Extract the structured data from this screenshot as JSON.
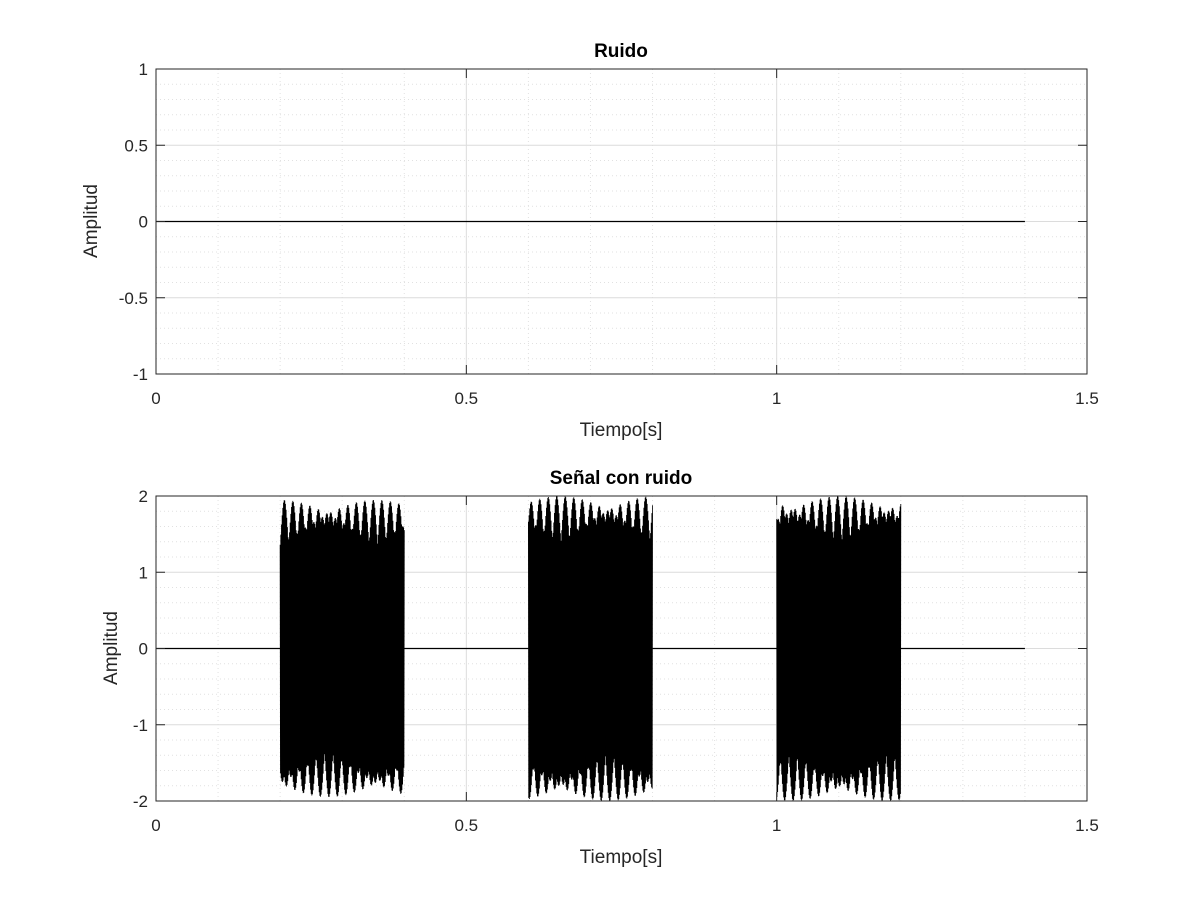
{
  "chart_data": [
    {
      "type": "line",
      "title": "Ruido",
      "xlabel": "Tiempo[s]",
      "ylabel": "Amplitud",
      "xlim": [
        0,
        1.5
      ],
      "ylim": [
        -1,
        1
      ],
      "xticks": [
        0,
        0.5,
        1,
        1.5
      ],
      "xtick_labels": [
        "0",
        "0.5",
        "1",
        "1.5"
      ],
      "yticks": [
        -1,
        -0.5,
        0,
        0.5,
        1
      ],
      "ytick_labels": [
        "-1",
        "-0.5",
        "0",
        "0.5",
        "1"
      ],
      "grid": true,
      "minor_grid": true,
      "line_color": "#000000",
      "series": [
        {
          "x": [
            0,
            1.4
          ],
          "y": [
            0,
            0
          ]
        }
      ]
    },
    {
      "type": "line",
      "title": "Señal con ruido",
      "xlabel": "Tiempo[s]",
      "ylabel": "Amplitud",
      "xlim": [
        0,
        1.5
      ],
      "ylim": [
        -2,
        2
      ],
      "xticks": [
        0,
        0.5,
        1,
        1.5
      ],
      "xtick_labels": [
        "0",
        "0.5",
        "1",
        "1.5"
      ],
      "yticks": [
        -2,
        -1,
        0,
        1,
        2
      ],
      "ytick_labels": [
        "-2",
        "-1",
        "0",
        "1",
        "2"
      ],
      "grid": true,
      "minor_grid": true,
      "line_color": "#000000",
      "signal_span": [
        0,
        1.4
      ],
      "bursts": [
        {
          "start": 0.2,
          "end": 0.4,
          "amplitude": 1.95
        },
        {
          "start": 0.6,
          "end": 0.8,
          "amplitude": 2.0
        },
        {
          "start": 1.0,
          "end": 1.2,
          "amplitude": 2.0
        }
      ]
    }
  ]
}
